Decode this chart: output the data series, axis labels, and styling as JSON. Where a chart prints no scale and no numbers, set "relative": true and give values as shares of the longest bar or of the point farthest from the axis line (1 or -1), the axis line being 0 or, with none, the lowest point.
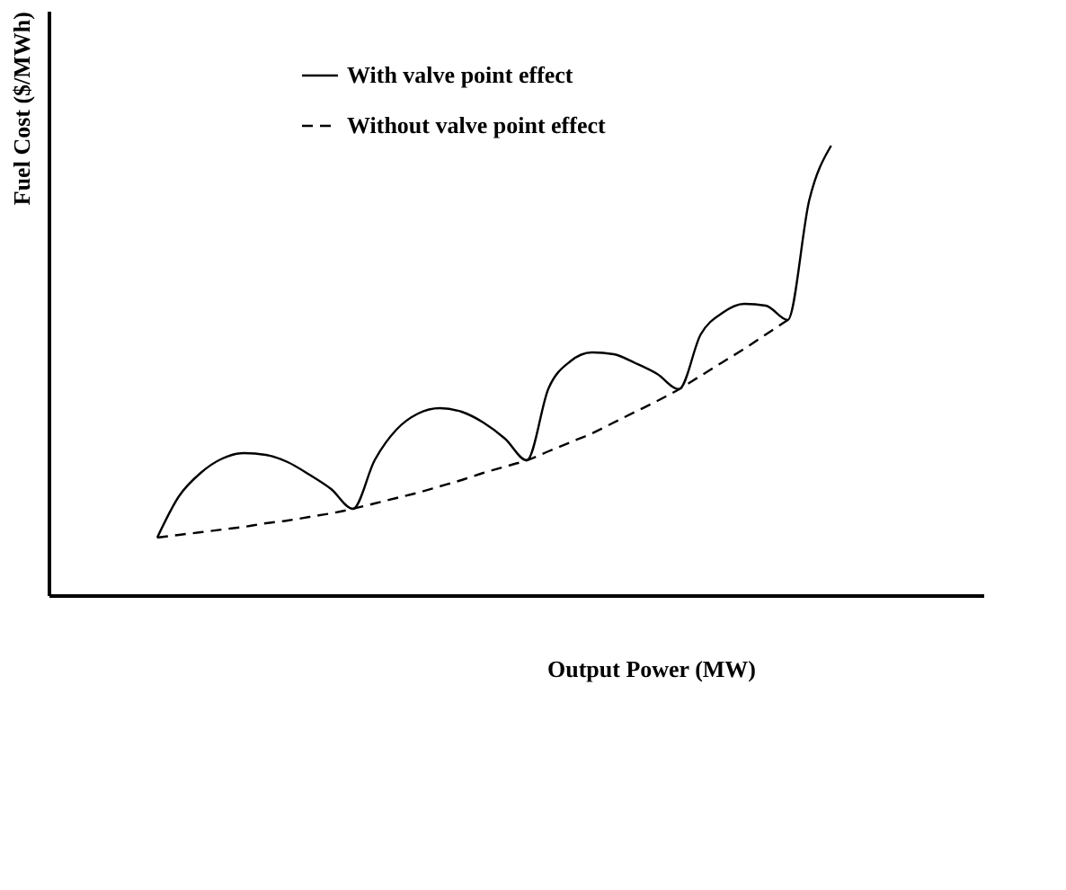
{
  "chart_data": {
    "type": "line",
    "relative": true,
    "xlabel": "Output Power (MW)",
    "ylabel": "Fuel Cost ($/MWh)",
    "categories": [
      null,
      null,
      null,
      null,
      null,
      null,
      null,
      null,
      null,
      null,
      null,
      null,
      null,
      null,
      null,
      null,
      null,
      null,
      null,
      null,
      null,
      null,
      null,
      null,
      null,
      null,
      null,
      null,
      null,
      null,
      null,
      null
    ],
    "series": [
      {
        "name": "With valve point effect",
        "color": "#000000",
        "line_style": "solid",
        "values": [
          0.128,
          0.22,
          0.272,
          0.304,
          0.316,
          0.312,
          0.296,
          0.268,
          0.236,
          0.192,
          0.3,
          0.368,
          0.404,
          0.416,
          0.408,
          0.384,
          0.348,
          0.3,
          0.46,
          0.52,
          0.54,
          0.536,
          0.516,
          0.492,
          0.458,
          0.58,
          0.628,
          0.648,
          0.644,
          0.612,
          0.88,
          1.0
        ]
      },
      {
        "name": "Without valve point effect",
        "color": "#000000",
        "line_style": "dashed",
        "values": [
          0.128,
          0.134,
          0.14,
          0.146,
          0.152,
          0.16,
          0.166,
          0.174,
          0.182,
          0.192,
          0.204,
          0.216,
          0.228,
          0.242,
          0.256,
          0.272,
          0.286,
          0.3,
          0.32,
          0.34,
          0.36,
          0.384,
          0.408,
          0.432,
          0.458,
          0.488,
          0.518,
          0.548,
          0.58,
          0.612,
          null,
          null
        ]
      }
    ],
    "legend": "top left",
    "grid": false
  }
}
